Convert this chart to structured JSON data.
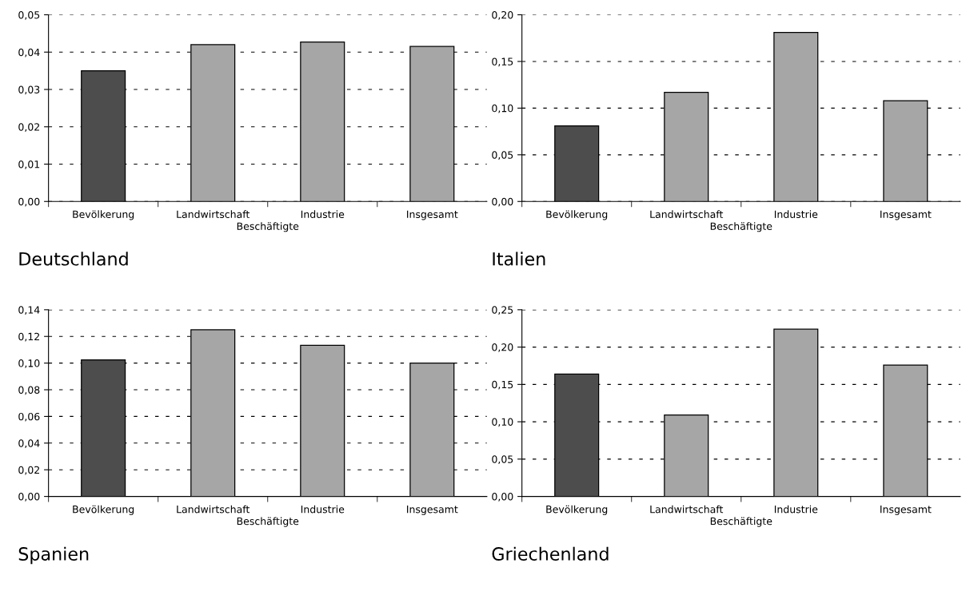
{
  "chart_data": [
    {
      "type": "bar",
      "title": "Deutschland",
      "xlabel": "Beschäftigte",
      "categories": [
        "Bevölkerung",
        "Landwirtschaft",
        "Industrie",
        "Insgesamt"
      ],
      "values": [
        0.035,
        0.042,
        0.0427,
        0.0415
      ],
      "colors": [
        "#4d4d4d",
        "#a6a6a6",
        "#a6a6a6",
        "#a6a6a6"
      ],
      "ylim": [
        0,
        0.05
      ],
      "yticks": [
        {
          "value": 0,
          "label": "0,00"
        },
        {
          "value": 0.01,
          "label": "0,01"
        },
        {
          "value": 0.02,
          "label": "0,02"
        },
        {
          "value": 0.03,
          "label": "0,03"
        },
        {
          "value": 0.04,
          "label": "0,04"
        },
        {
          "value": 0.05,
          "label": "0,05"
        }
      ],
      "grid": "y"
    },
    {
      "type": "bar",
      "title": "Italien",
      "xlabel": "Beschäftigte",
      "categories": [
        "Bevölkerung",
        "Landwirtschaft",
        "Industrie",
        "Insgesamt"
      ],
      "values": [
        0.081,
        0.117,
        0.181,
        0.108
      ],
      "colors": [
        "#4d4d4d",
        "#a6a6a6",
        "#a6a6a6",
        "#a6a6a6"
      ],
      "ylim": [
        0,
        0.2
      ],
      "yticks": [
        {
          "value": 0,
          "label": "0,00"
        },
        {
          "value": 0.05,
          "label": "0,05"
        },
        {
          "value": 0.1,
          "label": "0,10"
        },
        {
          "value": 0.15,
          "label": "0,15"
        },
        {
          "value": 0.2,
          "label": "0,20"
        }
      ],
      "grid": "y"
    },
    {
      "type": "bar",
      "title": "Spanien",
      "xlabel": "Beschäftigte",
      "categories": [
        "Bevölkerung",
        "Landwirtschaft",
        "Industrie",
        "Insgesamt"
      ],
      "values": [
        0.1024,
        0.125,
        0.1133,
        0.1
      ],
      "colors": [
        "#4d4d4d",
        "#a6a6a6",
        "#a6a6a6",
        "#a6a6a6"
      ],
      "ylim": [
        0,
        0.14
      ],
      "yticks": [
        {
          "value": 0,
          "label": "0,00"
        },
        {
          "value": 0.02,
          "label": "0,02"
        },
        {
          "value": 0.04,
          "label": "0,04"
        },
        {
          "value": 0.06,
          "label": "0,06"
        },
        {
          "value": 0.08,
          "label": "0,08"
        },
        {
          "value": 0.1,
          "label": "0,10"
        },
        {
          "value": 0.12,
          "label": "0,12"
        },
        {
          "value": 0.14,
          "label": "0,14"
        }
      ],
      "grid": "y"
    },
    {
      "type": "bar",
      "title": "Griechenland",
      "xlabel": "Beschäftigte",
      "categories": [
        "Bevölkerung",
        "Landwirtschaft",
        "Industrie",
        "Insgesamt"
      ],
      "values": [
        0.164,
        0.109,
        0.224,
        0.176
      ],
      "colors": [
        "#4d4d4d",
        "#a6a6a6",
        "#a6a6a6",
        "#a6a6a6"
      ],
      "ylim": [
        0,
        0.25
      ],
      "yticks": [
        {
          "value": 0,
          "label": "0,00"
        },
        {
          "value": 0.05,
          "label": "0,05"
        },
        {
          "value": 0.1,
          "label": "0,10"
        },
        {
          "value": 0.15,
          "label": "0,15"
        },
        {
          "value": 0.2,
          "label": "0,20"
        },
        {
          "value": 0.25,
          "label": "0,25"
        }
      ],
      "grid": "y"
    }
  ]
}
